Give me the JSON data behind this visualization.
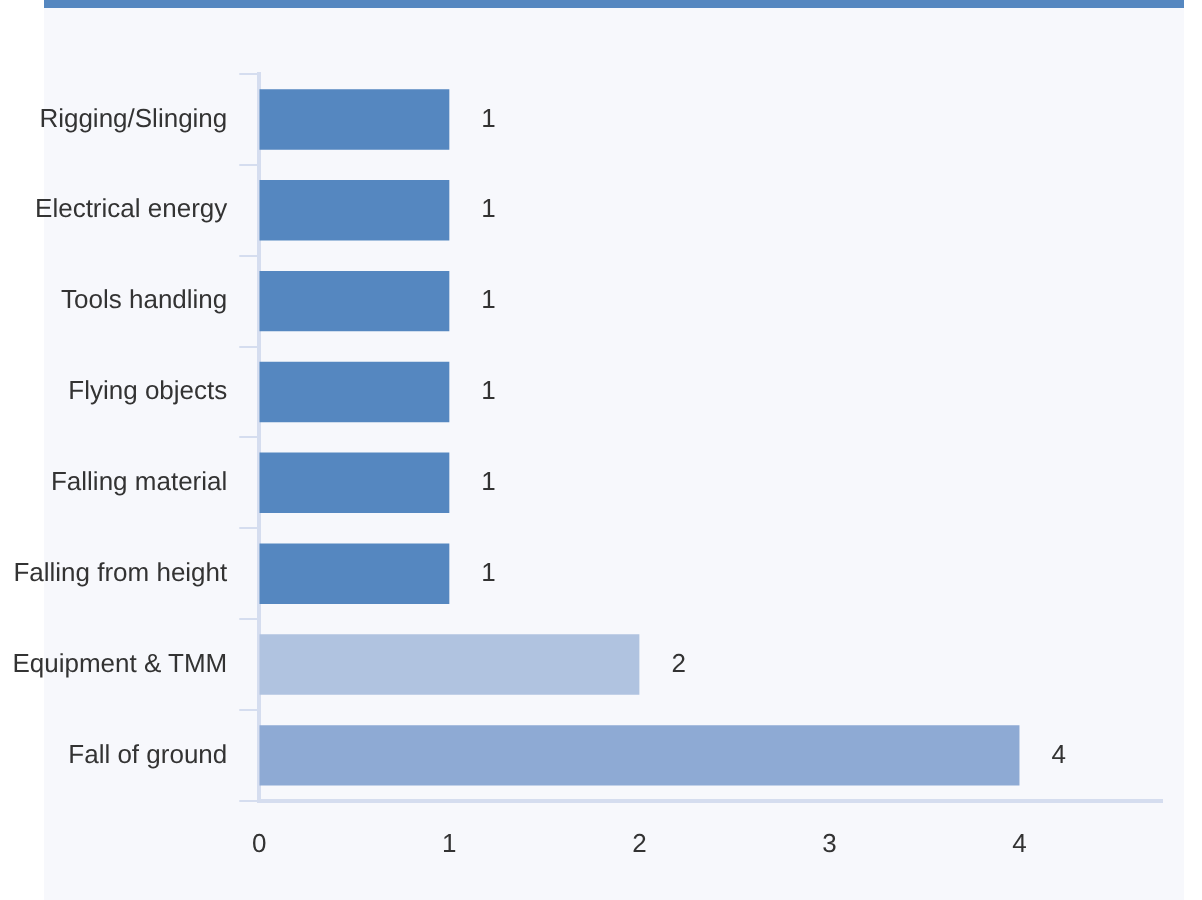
{
  "chart_data": {
    "type": "bar",
    "orientation": "horizontal",
    "categories": [
      "Rigging/Slinging",
      "Electrical energy",
      "Tools handling",
      "Flying objects",
      "Falling material",
      "Falling from height",
      "Equipment & TMM",
      "Fall of ground"
    ],
    "values": [
      1,
      1,
      1,
      1,
      1,
      1,
      2,
      4
    ],
    "colors": [
      "#5587c0",
      "#5587c0",
      "#5587c0",
      "#5587c0",
      "#5587c0",
      "#5587c0",
      "#b0c3e0",
      "#8eaad4"
    ],
    "xlim": [
      0,
      4.75
    ],
    "xticks": [
      0,
      1,
      2,
      3,
      4
    ],
    "grid": false,
    "legend": false,
    "data_labels": true
  }
}
